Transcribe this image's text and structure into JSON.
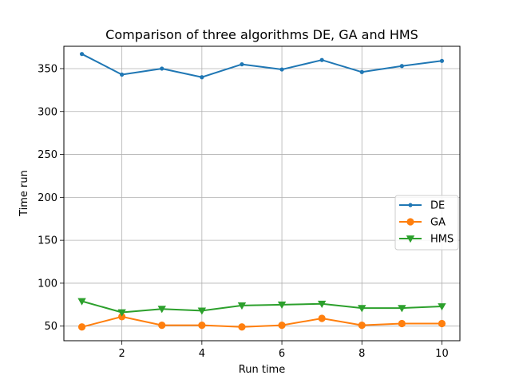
{
  "chart_data": {
    "type": "line",
    "title": "Comparison of three algorithms DE, GA and HMS",
    "xlabel": "Run time",
    "ylabel": "Time run",
    "x": [
      1,
      2,
      3,
      4,
      5,
      6,
      7,
      8,
      9,
      10
    ],
    "xlim": [
      0.55,
      10.45
    ],
    "ylim": [
      33,
      376
    ],
    "xticks": [
      2,
      4,
      6,
      8,
      10
    ],
    "yticks": [
      50,
      100,
      150,
      200,
      250,
      300,
      350
    ],
    "grid": true,
    "legend_position": "center-right",
    "series": [
      {
        "name": "DE",
        "color": "#1f77b4",
        "marker": "point",
        "values": [
          367,
          343,
          350,
          340,
          355,
          349,
          360,
          346,
          353,
          359
        ]
      },
      {
        "name": "GA",
        "color": "#ff7f0e",
        "marker": "circle",
        "values": [
          49,
          61,
          51,
          51,
          49,
          51,
          59,
          51,
          53,
          53
        ]
      },
      {
        "name": "HMS",
        "color": "#2ca02c",
        "marker": "triangle-down",
        "values": [
          79,
          66,
          70,
          68,
          74,
          75,
          76,
          71,
          71,
          73
        ]
      }
    ]
  }
}
